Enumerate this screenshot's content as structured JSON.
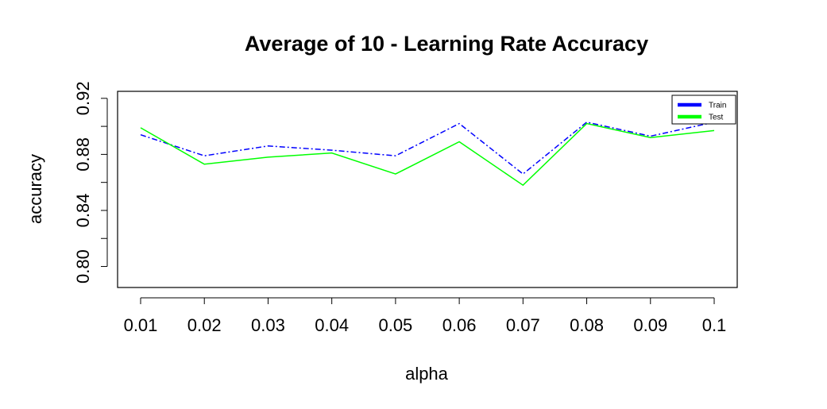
{
  "chart_data": {
    "type": "line",
    "title": "Average of 10 - Learning Rate Accuracy",
    "xlabel": "alpha",
    "ylabel": "accuracy",
    "x": [
      "0.01",
      "0.02",
      "0.03",
      "0.04",
      "0.05",
      "0.06",
      "0.07",
      "0.08",
      "0.09",
      "0.1"
    ],
    "ylim": [
      0.785,
      0.925
    ],
    "yticks": [
      "0.80",
      "0.84",
      "0.88",
      "0.92"
    ],
    "ytick_values": [
      0.8,
      0.84,
      0.88,
      0.92
    ],
    "legend_position": "top-right",
    "grid": false,
    "series": [
      {
        "name": "Train",
        "color": "#0000ff",
        "line_style": "dash-dot",
        "values": [
          0.894,
          0.879,
          0.886,
          0.883,
          0.879,
          0.902,
          0.866,
          0.903,
          0.893,
          0.903
        ]
      },
      {
        "name": "Test",
        "color": "#00ff00",
        "line_style": "solid",
        "values": [
          0.899,
          0.873,
          0.878,
          0.881,
          0.866,
          0.889,
          0.858,
          0.902,
          0.892,
          0.897
        ]
      }
    ]
  }
}
